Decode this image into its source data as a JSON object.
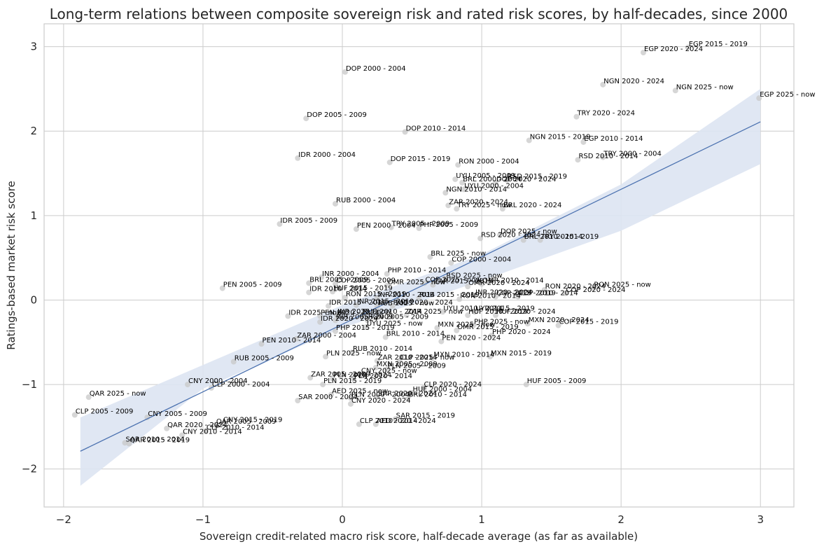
{
  "chart_data": {
    "type": "scatter",
    "title": "Long-term relations between composite sovereign risk and rated risk scores, by half-decades, since 2000",
    "xlabel": "Sovereign credit-related macro risk score, half-decade average (as far as available)",
    "ylabel": "Ratings-based market risk score",
    "xlim": [
      -2.14,
      3.24
    ],
    "ylim": [
      -2.45,
      3.27
    ],
    "xticks": [
      -2,
      -1,
      0,
      1,
      2,
      3
    ],
    "yticks": [
      -2,
      -1,
      0,
      1,
      2,
      3
    ],
    "xtick_labels": [
      "−2",
      "−1",
      "0",
      "1",
      "2",
      "3"
    ],
    "ytick_labels": [
      "−2",
      "−1",
      "0",
      "1",
      "2",
      "3"
    ],
    "grid": true,
    "legend": "none",
    "colors": {
      "points": "#c8c8c8",
      "line": "#4c72b0",
      "band": "#dde4f2",
      "grid": "#cccccc"
    },
    "regression": {
      "x": [
        -1.88,
        3.0
      ],
      "y": [
        -1.79,
        2.11
      ],
      "band_x": [
        -1.88,
        -1.0,
        0.0,
        1.0,
        2.0,
        3.0
      ],
      "band_lower": [
        -2.2,
        -1.05,
        -0.33,
        0.23,
        0.82,
        1.61
      ],
      "band_upper": [
        -1.39,
        -0.77,
        -0.06,
        0.54,
        1.37,
        2.5
      ]
    },
    "points": [
      {
        "label": "EGP 2015 - 2019",
        "x": 2.48,
        "y": 2.99
      },
      {
        "label": "EGP 2020 - 2024",
        "x": 2.16,
        "y": 2.93
      },
      {
        "label": "NGN 2020 - 2024",
        "x": 1.87,
        "y": 2.55
      },
      {
        "label": "NGN 2025 - now",
        "x": 2.39,
        "y": 2.48
      },
      {
        "label": "EGP 2025 - now",
        "x": 2.99,
        "y": 2.39
      },
      {
        "label": "DOP 2000 - 2004",
        "x": 0.02,
        "y": 2.7
      },
      {
        "label": "TRY 2020 - 2024",
        "x": 1.68,
        "y": 2.17
      },
      {
        "label": "DOP 2005 - 2009",
        "x": -0.26,
        "y": 2.15
      },
      {
        "label": "DOP 2010 - 2014",
        "x": 0.45,
        "y": 1.99
      },
      {
        "label": "NGN 2015 - 2019",
        "x": 1.34,
        "y": 1.89
      },
      {
        "label": "EGP 2010 - 2014",
        "x": 1.73,
        "y": 1.87
      },
      {
        "label": "IDR 2000 - 2004",
        "x": -0.32,
        "y": 1.68
      },
      {
        "label": "TRY 2000 - 2004",
        "x": 1.87,
        "y": 1.69
      },
      {
        "label": "RSD 2010 - 2014",
        "x": 1.69,
        "y": 1.66
      },
      {
        "label": "DOP 2015 - 2019",
        "x": 0.34,
        "y": 1.63
      },
      {
        "label": "RON 2000 - 2004",
        "x": 0.83,
        "y": 1.6
      },
      {
        "label": "UYU 2005 - 2009",
        "x": 0.81,
        "y": 1.43
      },
      {
        "label": "RSD 2015 - 2019",
        "x": 1.18,
        "y": 1.42
      },
      {
        "label": "BRL 2000 - 2004",
        "x": 0.86,
        "y": 1.39
      },
      {
        "label": "DOP 2020 - 2024",
        "x": 1.1,
        "y": 1.39
      },
      {
        "label": "UYU 2000 - 2004",
        "x": 0.87,
        "y": 1.31
      },
      {
        "label": "NGN 2010 - 2014",
        "x": 0.74,
        "y": 1.27
      },
      {
        "label": "RUB 2000 - 2004",
        "x": -0.05,
        "y": 1.14
      },
      {
        "label": "ZAR 2020 - 2024",
        "x": 0.76,
        "y": 1.12
      },
      {
        "label": "TRY 2025 - now",
        "x": 0.82,
        "y": 1.08
      },
      {
        "label": "BRL 2020 - 2024",
        "x": 1.15,
        "y": 1.08
      },
      {
        "label": "IDR 2005 - 2009",
        "x": -0.45,
        "y": 0.9
      },
      {
        "label": "PEN 2000 - 2004",
        "x": 0.1,
        "y": 0.84
      },
      {
        "label": "TRY 2005 - 2009",
        "x": 0.35,
        "y": 0.86
      },
      {
        "label": "PHP 2005 - 2009",
        "x": 0.55,
        "y": 0.85
      },
      {
        "label": "DOP 2025 - now",
        "x": 1.13,
        "y": 0.77
      },
      {
        "label": "RSD 2020 - 2024",
        "x": 0.99,
        "y": 0.73
      },
      {
        "label": "BRL 2010 - 2014",
        "x": 1.3,
        "y": 0.71
      },
      {
        "label": "TRY 2015 - 2019",
        "x": 1.42,
        "y": 0.71
      },
      {
        "label": "BRL 2025 - now",
        "x": 0.63,
        "y": 0.51
      },
      {
        "label": "COP 2000 - 2004",
        "x": 0.78,
        "y": 0.44
      },
      {
        "label": "PHP 2010 - 2014",
        "x": 0.32,
        "y": 0.31
      },
      {
        "label": "INR 2000 - 2004",
        "x": -0.15,
        "y": 0.27
      },
      {
        "label": "BRL 2005 - 2009",
        "x": -0.24,
        "y": 0.2
      },
      {
        "label": "COP 2005 - 2009",
        "x": -0.05,
        "y": 0.19
      },
      {
        "label": "RSD 2025 - now",
        "x": 0.74,
        "y": 0.25
      },
      {
        "label": "COP 2025 - now",
        "x": 0.59,
        "y": 0.2
      },
      {
        "label": "OMR 2010 - 2014",
        "x": 1.0,
        "y": 0.19
      },
      {
        "label": "OMR 2025 - now",
        "x": 0.32,
        "y": 0.17
      },
      {
        "label": "ZAR 2015 - 2019",
        "x": 0.65,
        "y": 0.18
      },
      {
        "label": "OMR 2020 - 2024",
        "x": 0.9,
        "y": 0.16
      },
      {
        "label": "PEN 2005 - 2009",
        "x": -0.86,
        "y": 0.14
      },
      {
        "label": "IDR 2010 - 2014",
        "x": -0.24,
        "y": 0.09
      },
      {
        "label": "HUF 2015 - 2019",
        "x": -0.07,
        "y": 0.1
      },
      {
        "label": "RON 2020 - 2024",
        "x": 1.45,
        "y": 0.12
      },
      {
        "label": "RON 2025 - now",
        "x": 1.8,
        "y": 0.14
      },
      {
        "label": "COP 2020 - 2024",
        "x": 1.6,
        "y": 0.08
      },
      {
        "label": "INR 2020 - 2024",
        "x": 0.95,
        "y": 0.05
      },
      {
        "label": "RON 2015 - 2019",
        "x": 0.02,
        "y": 0.03
      },
      {
        "label": "INR 2010 - 2014",
        "x": 0.25,
        "y": 0.02
      },
      {
        "label": "RUB 2015 - 2019",
        "x": 0.55,
        "y": 0.02
      },
      {
        "label": "RON 2010 - 2014",
        "x": 0.84,
        "y": 0.01
      },
      {
        "label": "COP 2015 - 2019",
        "x": 1.1,
        "y": 0.04
      },
      {
        "label": "COP 2010 - 2014",
        "x": 1.26,
        "y": 0.04
      },
      {
        "label": "IDR 2015 - 2019",
        "x": -0.1,
        "y": -0.07
      },
      {
        "label": "INR 2015 - 2019",
        "x": 0.1,
        "y": -0.06
      },
      {
        "label": "RUB 2025 - now",
        "x": 0.25,
        "y": -0.08
      },
      {
        "label": "RUB 2020 - 2024",
        "x": 0.36,
        "y": -0.07
      },
      {
        "label": "IDR 2025 - now",
        "x": -0.39,
        "y": -0.19
      },
      {
        "label": "PEN 2020 - 2024",
        "x": -0.16,
        "y": -0.19
      },
      {
        "label": "INR 2025 - now",
        "x": -0.04,
        "y": -0.18
      },
      {
        "label": "RUB 2010 - 2014",
        "x": 0.14,
        "y": -0.18
      },
      {
        "label": "ZAR 2025 - now",
        "x": 0.46,
        "y": -0.18
      },
      {
        "label": "UYU 2010 - 2014",
        "x": 0.72,
        "y": -0.14
      },
      {
        "label": "UYU 2015 - 2019",
        "x": 0.95,
        "y": -0.14
      },
      {
        "label": "HUF 2010 - 2014",
        "x": 0.9,
        "y": -0.18
      },
      {
        "label": "HUF 2020 - 2024",
        "x": 1.1,
        "y": -0.18
      },
      {
        "label": "IDR 2020 - 2024",
        "x": -0.16,
        "y": -0.26
      },
      {
        "label": "INR 2005 - 2009",
        "x": -0.05,
        "y": -0.24
      },
      {
        "label": "RON 2005 - 2009",
        "x": 0.18,
        "y": -0.24
      },
      {
        "label": "UYU 2025 - now",
        "x": 0.17,
        "y": -0.32
      },
      {
        "label": "MXN 2025 - now",
        "x": 0.68,
        "y": -0.33
      },
      {
        "label": "PHP 2025 - now",
        "x": 0.94,
        "y": -0.3
      },
      {
        "label": "OMR 2015 - 2019",
        "x": 0.82,
        "y": -0.36
      },
      {
        "label": "MXN 2020 - 2024",
        "x": 1.33,
        "y": -0.28
      },
      {
        "label": "COP 2015 - 2019",
        "x": 1.55,
        "y": -0.3
      },
      {
        "label": "PHP 2015 - 2019",
        "x": -0.05,
        "y": -0.37
      },
      {
        "label": "PHP 2020 - 2024",
        "x": 1.07,
        "y": -0.42
      },
      {
        "label": "ZAR 2000 - 2004",
        "x": -0.33,
        "y": -0.46
      },
      {
        "label": "BRL 2010 - 2014",
        "x": 0.31,
        "y": -0.44
      },
      {
        "label": "PEN 2020 - 2024",
        "x": 0.71,
        "y": -0.49
      },
      {
        "label": "PEN 2010 - 2014",
        "x": -0.58,
        "y": -0.52
      },
      {
        "label": "RUB 2010 - 2014",
        "x": 0.07,
        "y": -0.62
      },
      {
        "label": "PLN 2025 - now",
        "x": -0.12,
        "y": -0.67
      },
      {
        "label": "MXN 2010 - 2014",
        "x": 0.65,
        "y": -0.69
      },
      {
        "label": "MXN 2015 - 2019",
        "x": 1.06,
        "y": -0.67
      },
      {
        "label": "RUB 2005 - 2009",
        "x": -0.78,
        "y": -0.73
      },
      {
        "label": "ZAR 2010 - 2014",
        "x": 0.25,
        "y": -0.72
      },
      {
        "label": "CLP 2025 - now",
        "x": 0.41,
        "y": -0.72
      },
      {
        "label": "MXN 2005 - 2009",
        "x": 0.24,
        "y": -0.8
      },
      {
        "label": "PLN 2005 - 2009",
        "x": 0.32,
        "y": -0.82
      },
      {
        "label": "CNY 2025 - now",
        "x": 0.13,
        "y": -0.88
      },
      {
        "label": "ZAR 2005 - 2009",
        "x": -0.23,
        "y": -0.92
      },
      {
        "label": "PLN 2020 - 2024",
        "x": -0.07,
        "y": -0.93
      },
      {
        "label": "PLN 2010 - 2014",
        "x": 0.08,
        "y": -0.94
      },
      {
        "label": "CNY 2000 - 2004",
        "x": -1.11,
        "y": -1.0
      },
      {
        "label": "CLP 2000 - 2004",
        "x": -0.94,
        "y": -1.04
      },
      {
        "label": "PLN 2015 - 2019",
        "x": -0.14,
        "y": -1.0
      },
      {
        "label": "HUF 2005 - 2009",
        "x": 1.32,
        "y": -1.0
      },
      {
        "label": "CLP 2020 - 2024",
        "x": 0.58,
        "y": -1.04
      },
      {
        "label": "AED 2025 - now",
        "x": -0.08,
        "y": -1.12
      },
      {
        "label": "HUF 2000 - 2004",
        "x": 0.5,
        "y": -1.1
      },
      {
        "label": "PLN 2000 - 2004",
        "x": 0.06,
        "y": -1.16
      },
      {
        "label": "SAR 2020 - 2024",
        "x": 0.25,
        "y": -1.15
      },
      {
        "label": "BRL 2010 - 2014",
        "x": 0.47,
        "y": -1.16
      },
      {
        "label": "QAR 2025 - now",
        "x": -1.82,
        "y": -1.15
      },
      {
        "label": "SAR 2000 - 2004",
        "x": -0.32,
        "y": -1.19
      },
      {
        "label": "CNY 2020 - 2024",
        "x": 0.06,
        "y": -1.23
      },
      {
        "label": "CLP 2005 - 2009",
        "x": -1.92,
        "y": -1.36
      },
      {
        "label": "CNY 2005 - 2009",
        "x": -1.4,
        "y": -1.39
      },
      {
        "label": "SAR 2015 - 2019",
        "x": 0.38,
        "y": -1.41
      },
      {
        "label": "CLP 2010 - 2014",
        "x": 0.12,
        "y": -1.47
      },
      {
        "label": "AED 2020 - 2024",
        "x": 0.24,
        "y": -1.47
      },
      {
        "label": "CNY 2015 - 2019",
        "x": -0.86,
        "y": -1.46
      },
      {
        "label": "QAR 2005 - 2009",
        "x": -0.91,
        "y": -1.48
      },
      {
        "label": "QAR 2020 - 2024",
        "x": -1.26,
        "y": -1.52
      },
      {
        "label": "CLP 2010 - 2014",
        "x": -0.98,
        "y": -1.55
      },
      {
        "label": "CNY 2010 - 2014",
        "x": -1.15,
        "y": -1.6
      },
      {
        "label": "SAR 2010 - 2014",
        "x": -1.56,
        "y": -1.69
      },
      {
        "label": "QAR 2015 - 2019",
        "x": -1.53,
        "y": -1.7
      }
    ]
  }
}
